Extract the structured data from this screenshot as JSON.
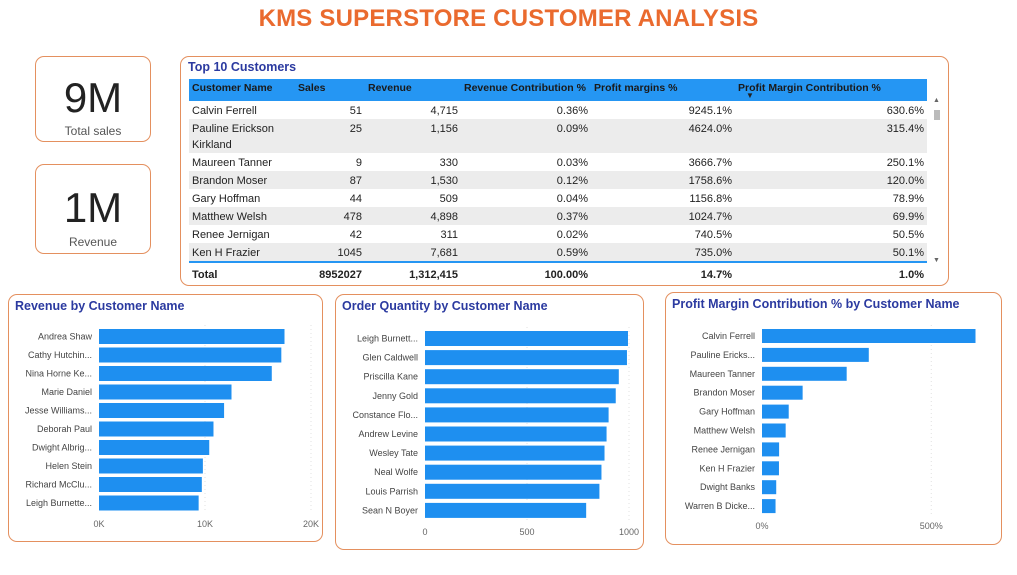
{
  "page": {
    "title": "KMS SUPERSTORE CUSTOMER ANALYSIS"
  },
  "colors": {
    "accent": "#ea6a2e",
    "bar": "#1e8ff0",
    "title_blue": "#2b3aa0",
    "border": "#e4905f"
  },
  "kpis": [
    {
      "value": "9M",
      "label": "Total sales"
    },
    {
      "value": "1M",
      "label": "Revenue"
    }
  ],
  "top_table": {
    "title": "Top 10 Customers",
    "columns": [
      "Customer Name",
      "Sales",
      "Revenue",
      "Revenue Contribution %",
      "Profit margins %",
      "Profit Margin Contribution %"
    ],
    "rows": [
      [
        "Calvin Ferrell",
        "51",
        "4,715",
        "0.36%",
        "9245.1%",
        "630.6%"
      ],
      [
        "Pauline Erickson Kirkland",
        "25",
        "1,156",
        "0.09%",
        "4624.0%",
        "315.4%"
      ],
      [
        "Maureen Tanner",
        "9",
        "330",
        "0.03%",
        "3666.7%",
        "250.1%"
      ],
      [
        "Brandon Moser",
        "87",
        "1,530",
        "0.12%",
        "1758.6%",
        "120.0%"
      ],
      [
        "Gary Hoffman",
        "44",
        "509",
        "0.04%",
        "1156.8%",
        "78.9%"
      ],
      [
        "Matthew Welsh",
        "478",
        "4,898",
        "0.37%",
        "1024.7%",
        "69.9%"
      ],
      [
        "Renee Jernigan",
        "42",
        "311",
        "0.02%",
        "740.5%",
        "50.5%"
      ],
      [
        "Ken H Frazier",
        "1045",
        "7,681",
        "0.59%",
        "735.0%",
        "50.1%"
      ]
    ],
    "total": [
      "Total",
      "8952027",
      "1,312,415",
      "100.00%",
      "14.7%",
      "1.0%"
    ]
  },
  "chart_data": [
    {
      "type": "bar",
      "orientation": "horizontal",
      "title": "Revenue by Customer Name",
      "categories": [
        "Andrea Shaw",
        "Cathy Hutchin...",
        "Nina Horne Ke...",
        "Marie Daniel",
        "Jesse Williams...",
        "Deborah Paul",
        "Dwight Albrig...",
        "Helen Stein",
        "Richard McClu...",
        "Leigh Burnette..."
      ],
      "values": [
        17500,
        17200,
        16300,
        12500,
        11800,
        10800,
        10400,
        9800,
        9700,
        9400
      ],
      "xlim": [
        0,
        20000
      ],
      "xticks": [
        0,
        10000,
        20000
      ],
      "xtick_labels": [
        "0K",
        "10K",
        "20K"
      ]
    },
    {
      "type": "bar",
      "orientation": "horizontal",
      "title": "Order Quantity by Customer Name",
      "categories": [
        "Leigh Burnett...",
        "Glen Caldwell",
        "Priscilla Kane",
        "Jenny Gold",
        "Constance Flo...",
        "Andrew Levine",
        "Wesley Tate",
        "Neal Wolfe",
        "Louis Parrish",
        "Sean N Boyer"
      ],
      "values": [
        995,
        990,
        950,
        935,
        900,
        890,
        880,
        865,
        855,
        790
      ],
      "xlim": [
        0,
        1000
      ],
      "xticks": [
        0,
        500,
        1000
      ],
      "xtick_labels": [
        "0",
        "500",
        "1000"
      ]
    },
    {
      "type": "bar",
      "orientation": "horizontal",
      "title": "Profit Margin Contribution % by Customer Name",
      "categories": [
        "Calvin Ferrell",
        "Pauline Ericks...",
        "Maureen Tanner",
        "Brandon Moser",
        "Gary Hoffman",
        "Matthew Welsh",
        "Renee Jernigan",
        "Ken H Frazier",
        "Dwight Banks",
        "Warren B Dicke..."
      ],
      "values": [
        630.6,
        315.4,
        250.1,
        120.0,
        78.9,
        69.9,
        50.5,
        50.1,
        42,
        40
      ],
      "xlim": [
        0,
        700
      ],
      "xticks": [
        0,
        500
      ],
      "xtick_labels": [
        "0%",
        "500%"
      ]
    }
  ]
}
